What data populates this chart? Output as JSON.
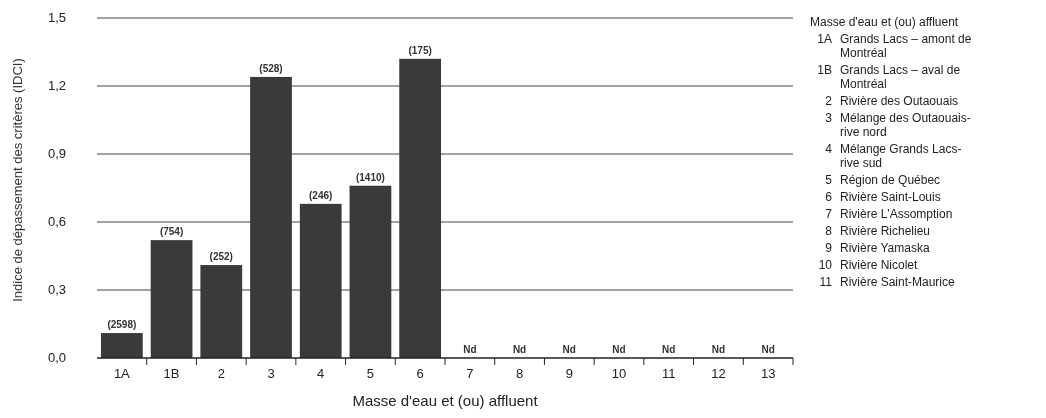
{
  "chart_data": {
    "type": "bar",
    "xlabel": "Masse d'eau et (ou) affluent",
    "ylabel": "Indice de dépassement des critères (IDCI)",
    "categories": [
      "1A",
      "1B",
      "2",
      "3",
      "4",
      "5",
      "6",
      "7",
      "8",
      "9",
      "10",
      "11",
      "12",
      "13"
    ],
    "values": [
      0.11,
      0.52,
      0.41,
      1.24,
      0.68,
      0.76,
      1.32,
      null,
      null,
      null,
      null,
      null,
      null,
      null
    ],
    "value_labels": [
      null,
      null,
      null,
      null,
      null,
      null,
      null,
      "Nd",
      "Nd",
      "Nd",
      "Nd",
      "Nd",
      "Nd",
      "Nd"
    ],
    "color": "#3a3a3a",
    "ylim": [
      0,
      1.5
    ],
    "yticks": [
      {
        "value": 0,
        "label": "0,0"
      },
      {
        "value": 0.3,
        "label": "0,3"
      },
      {
        "value": 0.6,
        "label": "0,6"
      },
      {
        "value": 0.9,
        "label": "0,9"
      },
      {
        "value": 1.2,
        "label": "1,2"
      },
      {
        "value": 1.5,
        "label": "1,5"
      }
    ],
    "grid": "y",
    "annotations": [
      "Masse d'eau et (ou) affluent",
      "1A Grands Lacs – amont de Montréal",
      "1B Grands Lacs – aval de Montréal",
      "2 Rivière des Outaouais",
      "3 Mélange des Outaouais-rive nord",
      "4 Mélange Grands Lacs-rive sud",
      "5 Région de Québec",
      "6 Rivière Saint-Louis",
      "7 Rivière L'Assomption",
      "8 Rivière Richelieu",
      "9 Rivière Yamaska",
      "10 Rivière Nicolet",
      "11 Rivière Saint-Maurice",
      {
        "text": "(2598)",
        "x": "1A",
        "y": 0.11
      },
      {
        "text": "(754)",
        "x": "1B",
        "y": 0.52
      },
      {
        "text": "(252)",
        "x": "2",
        "y": 0.41
      },
      {
        "text": "(528)",
        "x": "3",
        "y": 1.24
      },
      {
        "text": "(246)",
        "x": "4",
        "y": 0.68
      },
      {
        "text": "(1410)",
        "x": "5",
        "y": 0.76
      },
      {
        "text": "(175)",
        "x": "6",
        "y": 1.32
      }
    ]
  }
}
